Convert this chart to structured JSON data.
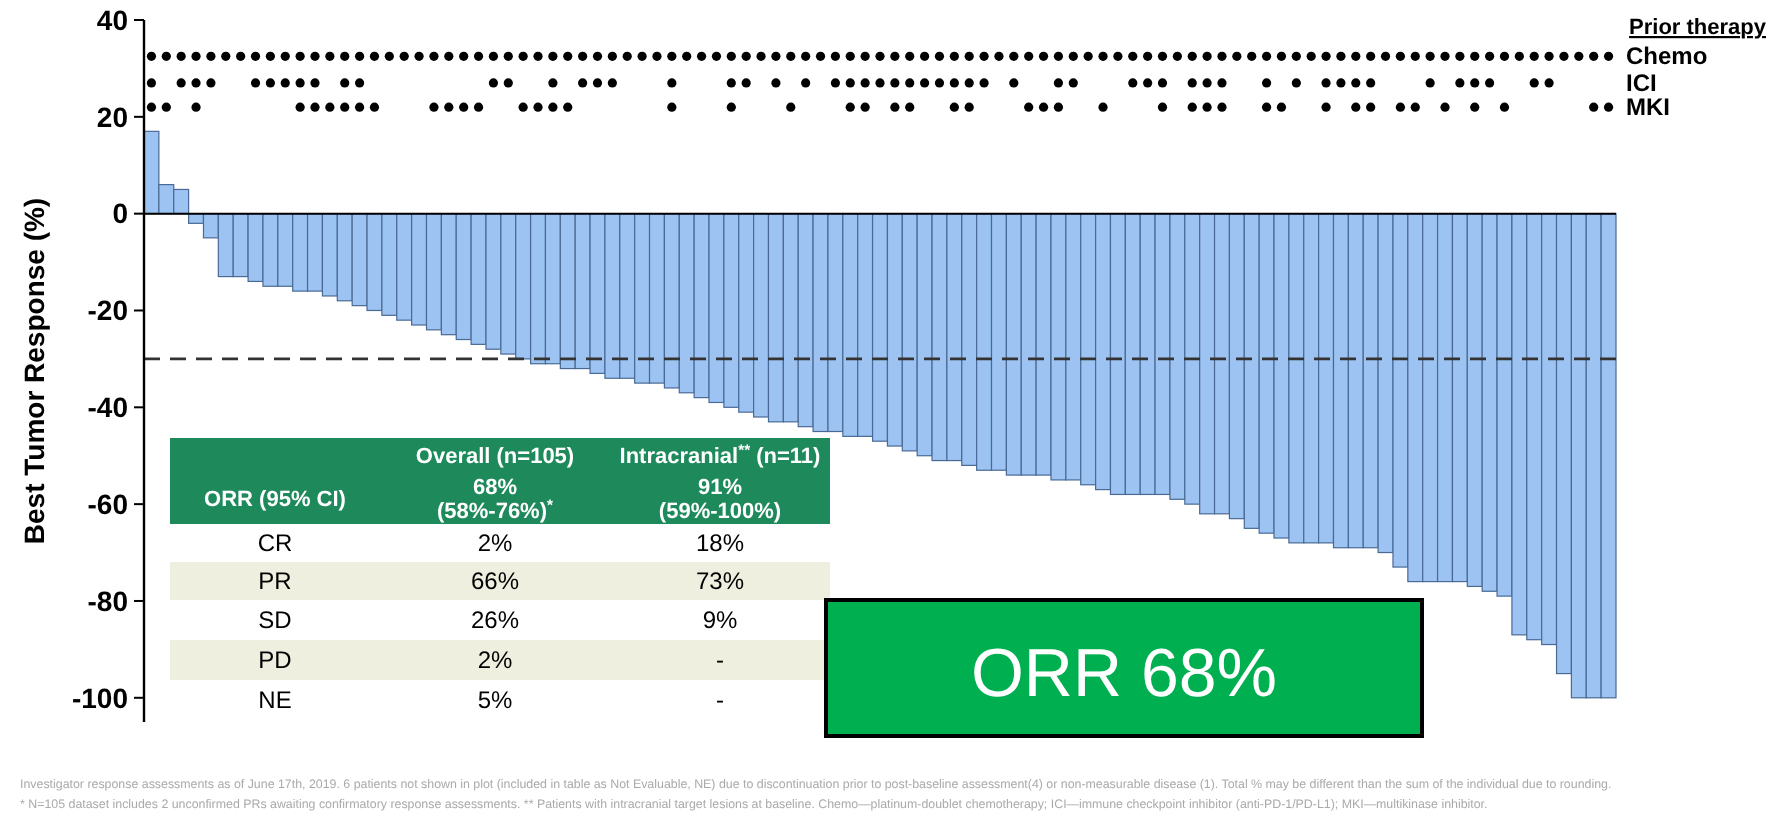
{
  "chart_data": {
    "type": "bar",
    "ylabel": "Best Tumor Response (%)",
    "legend_title": "Prior therapy",
    "categories": [
      null,
      null,
      null,
      null,
      null,
      null,
      null,
      null,
      null,
      null,
      null,
      null,
      null,
      null,
      null,
      null,
      null,
      null,
      null,
      null,
      null,
      null,
      null,
      null,
      null,
      null,
      null,
      null,
      null,
      null,
      null,
      null,
      null,
      null,
      null,
      null,
      null,
      null,
      null,
      null,
      null,
      null,
      null,
      null,
      null,
      null,
      null,
      null,
      null,
      null,
      null,
      null,
      null,
      null,
      null,
      null,
      null,
      null,
      null,
      null,
      null,
      null,
      null,
      null,
      null,
      null,
      null,
      null,
      null,
      null,
      null,
      null,
      null,
      null,
      null,
      null,
      null,
      null,
      null,
      null,
      null,
      null,
      null,
      null,
      null,
      null,
      null,
      null,
      null,
      null,
      null,
      null,
      null,
      null,
      null,
      null,
      null,
      null,
      null
    ],
    "series": [
      {
        "type": "bar",
        "color": "#9cc3f2",
        "values": [
          17,
          6,
          5,
          -2,
          -5,
          -13,
          -13,
          -14,
          -15,
          -15,
          -16,
          -16,
          -17,
          -18,
          -19,
          -20,
          -21,
          -22,
          -23,
          -24,
          -25,
          -26,
          -27,
          -28,
          -29,
          -30,
          -31,
          -31,
          -32,
          -32,
          -33,
          -34,
          -34,
          -35,
          -35,
          -36,
          -37,
          -38,
          -39,
          -40,
          -41,
          -42,
          -43,
          -43,
          -44,
          -45,
          -45,
          -46,
          -46,
          -47,
          -48,
          -49,
          -50,
          -51,
          -51,
          -52,
          -53,
          -53,
          -54,
          -54,
          -54,
          -55,
          -55,
          -56,
          -57,
          -58,
          -58,
          -58,
          -58,
          -59,
          -60,
          -62,
          -62,
          -63,
          -65,
          -66,
          -67,
          -68,
          -68,
          -68,
          -69,
          -69,
          -69,
          -70,
          -73,
          -76,
          -76,
          -76,
          -76,
          -77,
          -78,
          -79,
          -87,
          -88,
          -89,
          -95,
          -100,
          -100,
          -100
        ]
      },
      {
        "type": "scatter",
        "name": "Chemo",
        "color": "#000000",
        "values": [
          32.5,
          32.5,
          32.5,
          32.5,
          32.5,
          32.5,
          32.5,
          32.5,
          32.5,
          32.5,
          32.5,
          32.5,
          32.5,
          32.5,
          32.5,
          32.5,
          32.5,
          32.5,
          32.5,
          32.5,
          32.5,
          32.5,
          32.5,
          32.5,
          32.5,
          32.5,
          32.5,
          32.5,
          32.5,
          32.5,
          32.5,
          32.5,
          32.5,
          32.5,
          32.5,
          32.5,
          32.5,
          32.5,
          32.5,
          32.5,
          32.5,
          32.5,
          32.5,
          32.5,
          32.5,
          32.5,
          32.5,
          32.5,
          32.5,
          32.5,
          32.5,
          32.5,
          32.5,
          32.5,
          32.5,
          32.5,
          32.5,
          32.5,
          32.5,
          32.5,
          32.5,
          32.5,
          32.5,
          32.5,
          32.5,
          32.5,
          32.5,
          32.5,
          32.5,
          32.5,
          32.5,
          32.5,
          32.5,
          32.5,
          32.5,
          32.5,
          32.5,
          32.5,
          32.5,
          32.5,
          32.5,
          32.5,
          32.5,
          32.5,
          32.5,
          32.5,
          32.5,
          32.5,
          32.5,
          32.5,
          32.5,
          32.5,
          32.5,
          32.5,
          32.5,
          32.5,
          32.5,
          32.5,
          32.5
        ]
      },
      {
        "type": "scatter",
        "name": "ICI",
        "color": "#000000",
        "values": [
          27,
          null,
          27,
          27,
          27,
          null,
          null,
          27,
          27,
          27,
          27,
          27,
          null,
          27,
          27,
          null,
          null,
          null,
          null,
          null,
          null,
          null,
          null,
          27,
          27,
          null,
          null,
          27,
          null,
          27,
          27,
          27,
          null,
          null,
          null,
          27,
          null,
          null,
          null,
          27,
          27,
          null,
          27,
          null,
          27,
          null,
          27,
          27,
          27,
          27,
          27,
          27,
          27,
          27,
          27,
          27,
          27,
          null,
          27,
          null,
          null,
          27,
          27,
          null,
          null,
          null,
          27,
          27,
          27,
          null,
          27,
          27,
          27,
          null,
          null,
          27,
          null,
          27,
          null,
          27,
          27,
          27,
          27,
          null,
          null,
          null,
          27,
          null,
          27,
          27,
          27,
          null,
          null,
          27,
          27,
          null,
          null,
          null,
          null
        ]
      },
      {
        "type": "scatter",
        "name": "MKI",
        "color": "#000000",
        "values": [
          22,
          22,
          null,
          22,
          null,
          null,
          null,
          null,
          null,
          null,
          22,
          22,
          22,
          22,
          22,
          22,
          null,
          null,
          null,
          22,
          22,
          22,
          22,
          null,
          null,
          22,
          22,
          22,
          22,
          null,
          null,
          null,
          null,
          null,
          null,
          22,
          null,
          null,
          null,
          22,
          null,
          null,
          null,
          22,
          null,
          null,
          null,
          22,
          22,
          null,
          22,
          22,
          null,
          null,
          22,
          22,
          null,
          null,
          null,
          22,
          22,
          22,
          null,
          null,
          22,
          null,
          null,
          null,
          22,
          null,
          22,
          22,
          22,
          null,
          null,
          22,
          22,
          null,
          null,
          22,
          null,
          22,
          22,
          null,
          22,
          22,
          null,
          22,
          null,
          22,
          null,
          22,
          null,
          null,
          null,
          null,
          null,
          22,
          22
        ]
      }
    ],
    "ylim": [
      -105,
      40
    ],
    "yticks": [
      -100,
      -80,
      -60,
      -40,
      -20,
      0,
      20,
      40
    ],
    "marker": "circle",
    "legend": "right",
    "ref_lines": [
      {
        "axis": "y",
        "value": -30,
        "color": "#333333",
        "line_style": "dashed"
      }
    ],
    "annotations": [
      "ORR 68%",
      "Investigator response assessments as of June 17th, 2019. 6 patients not shown in plot (included in table as Not Evaluable, NE) due to discontinuation prior to post-baseline assessment(4) or non-measurable disease (1). Total % may be different than the sum of the individual due to rounding. * N=105 dataset includes 2 unconfirmed PRs awaiting confirmatory response assessments. ** Patients with intracranial target lesions at baseline. Chemo—platinum-doublet chemotherapy; ICI—immune checkpoint inhibitor (anti-PD-1/PD-L1); MKI—multikinase inhibitor.",
      "Overall (n=105)",
      "Intracranial$^{**}$ (n=11)",
      "ORR (95% CI)",
      "68%\n(58%-76%)$^{*}$",
      "91%\n(59%-100%)",
      "CR",
      "2%",
      "18%",
      "PR",
      "66%",
      "73%",
      "SD",
      "26%",
      "9%",
      "PD",
      "2%",
      "-",
      "NE",
      "5%",
      "-"
    ]
  }
}
